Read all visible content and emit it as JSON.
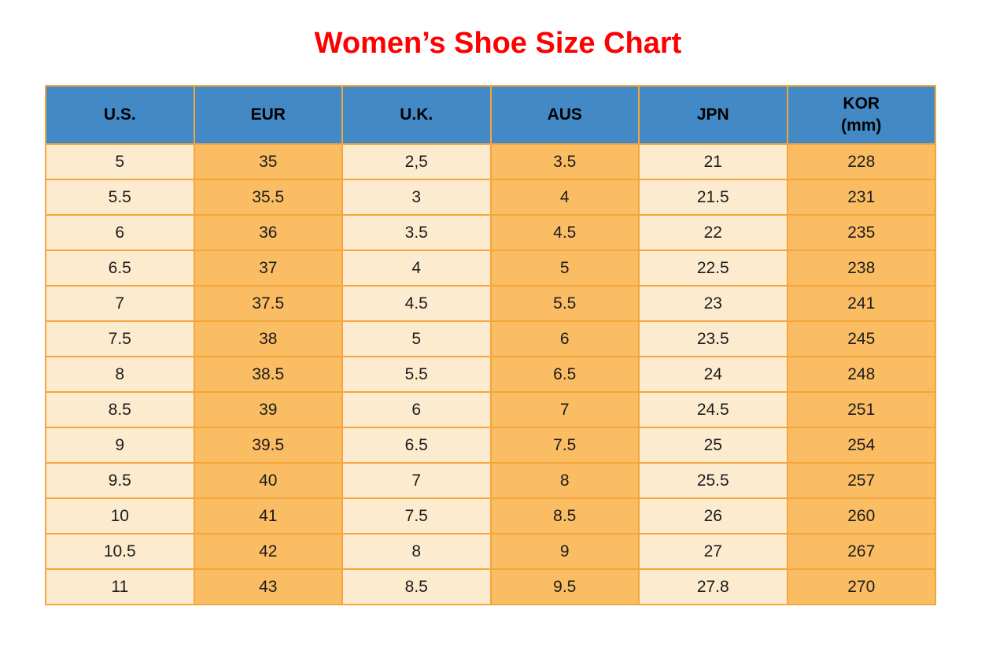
{
  "page": {
    "title": "Women’s Shoe Size Chart"
  },
  "theme": {
    "title_color": "#fe0000",
    "header_bg": "#4289c6",
    "header_text": "#000000",
    "cream_cell": "#fdebd0",
    "orange_cell": "#fbbd64",
    "border": "#f3a63a",
    "cell_text": "#1c1c1c"
  },
  "table": {
    "columns": [
      {
        "key": "us",
        "label": "U.S."
      },
      {
        "key": "eur",
        "label": "EUR"
      },
      {
        "key": "uk",
        "label": "U.K."
      },
      {
        "key": "aus",
        "label": "AUS"
      },
      {
        "key": "jpn",
        "label": "JPN"
      },
      {
        "key": "kor",
        "label": "KOR",
        "sublabel": "(mm)"
      }
    ]
  },
  "chart_data": {
    "type": "table",
    "title": "Women’s Shoe Size Chart",
    "columns": [
      "U.S.",
      "EUR",
      "U.K.",
      "AUS",
      "JPN",
      "KOR (mm)"
    ],
    "rows": [
      [
        "5",
        "35",
        "2,5",
        "3.5",
        "21",
        "228"
      ],
      [
        "5.5",
        "35.5",
        "3",
        "4",
        "21.5",
        "231"
      ],
      [
        "6",
        "36",
        "3.5",
        "4.5",
        "22",
        "235"
      ],
      [
        "6.5",
        "37",
        "4",
        "5",
        "22.5",
        "238"
      ],
      [
        "7",
        "37.5",
        "4.5",
        "5.5",
        "23",
        "241"
      ],
      [
        "7.5",
        "38",
        "5",
        "6",
        "23.5",
        "245"
      ],
      [
        "8",
        "38.5",
        "5.5",
        "6.5",
        "24",
        "248"
      ],
      [
        "8.5",
        "39",
        "6",
        "7",
        "24.5",
        "251"
      ],
      [
        "9",
        "39.5",
        "6.5",
        "7.5",
        "25",
        "254"
      ],
      [
        "9.5",
        "40",
        "7",
        "8",
        "25.5",
        "257"
      ],
      [
        "10",
        "41",
        "7.5",
        "8.5",
        "26",
        "260"
      ],
      [
        "10.5",
        "42",
        "8",
        "9",
        "27",
        "267"
      ],
      [
        "11",
        "43",
        "8.5",
        "9.5",
        "27.8",
        "270"
      ]
    ],
    "layout": {
      "header_position": "top",
      "column_fill_pattern": [
        "cream",
        "orange",
        "cream",
        "orange",
        "cream",
        "orange"
      ],
      "grid": true
    }
  }
}
